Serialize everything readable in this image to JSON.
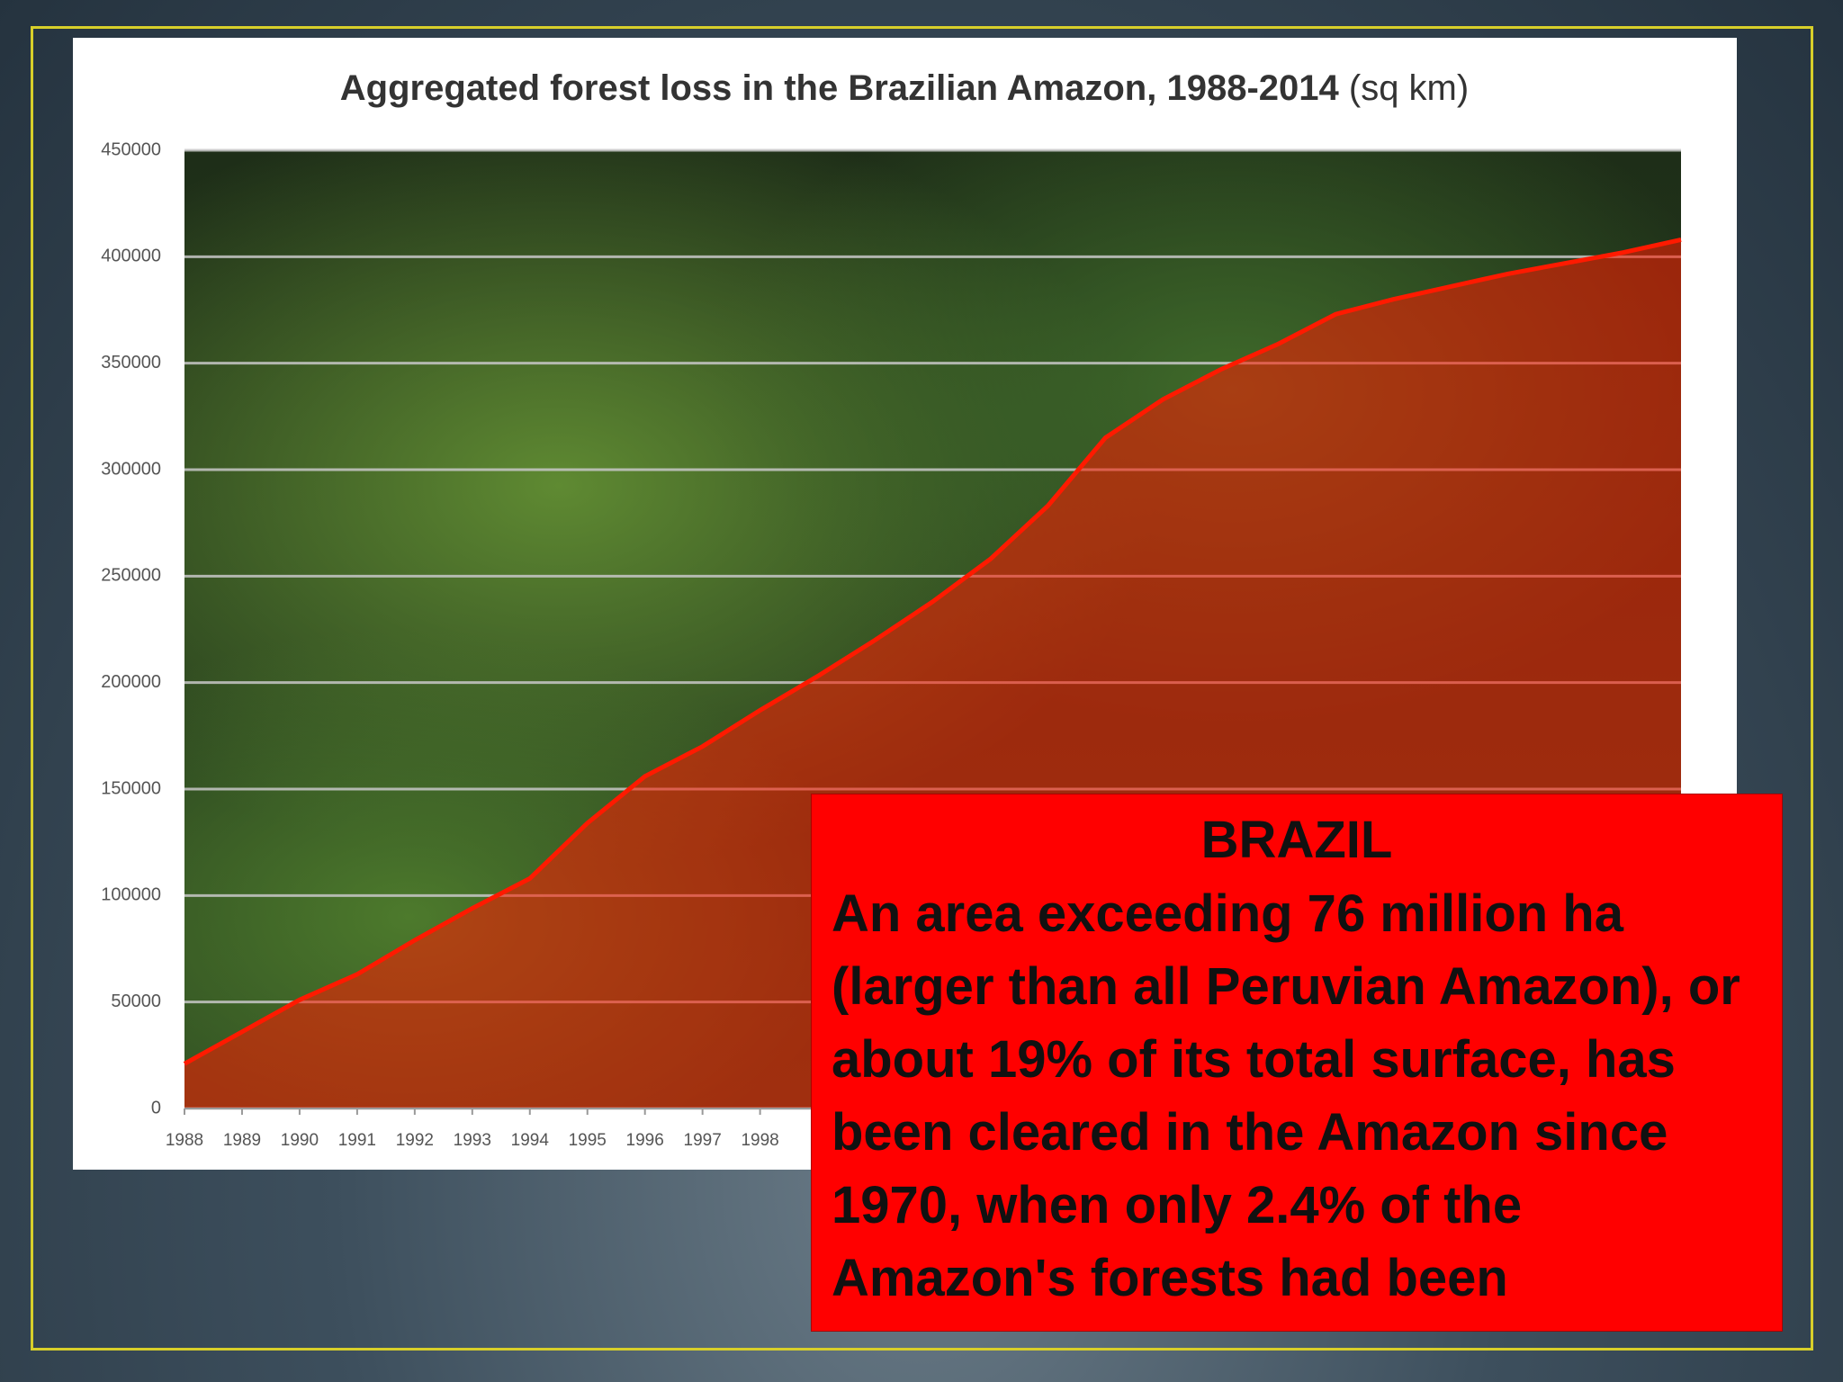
{
  "chart_data": {
    "type": "area",
    "title": "Aggregated forest loss in the Brazilian Amazon, 1988-2014",
    "title_unit": "(sq km)",
    "categories": [
      "1988",
      "1989",
      "1990",
      "1991",
      "1992",
      "1993",
      "1994",
      "1995",
      "1996",
      "1997",
      "1998",
      null,
      null,
      null,
      null,
      null,
      null,
      null,
      null,
      null,
      null,
      null,
      null,
      null,
      null,
      null,
      null
    ],
    "values": [
      21000,
      36000,
      51000,
      63000,
      79000,
      94000,
      108000,
      134000,
      156000,
      170000,
      187000,
      203000,
      220000,
      238000,
      258000,
      283000,
      315000,
      333000,
      347000,
      359000,
      373000,
      380000,
      386000,
      392000,
      397000,
      402000,
      408000
    ],
    "color": "#ff1a00",
    "ylim": [
      0,
      450000
    ],
    "yticks": [
      0,
      50000,
      100000,
      150000,
      200000,
      250000,
      300000,
      350000,
      400000,
      450000
    ],
    "grid": true
  },
  "callout": {
    "heading": "BRAZIL",
    "text": "An area exceeding 76 million ha (larger than all Peruvian Amazon), or about 19% of its total surface, has been cleared in the Amazon since 1970, when only 2.4% of the Amazon's forests had been"
  }
}
